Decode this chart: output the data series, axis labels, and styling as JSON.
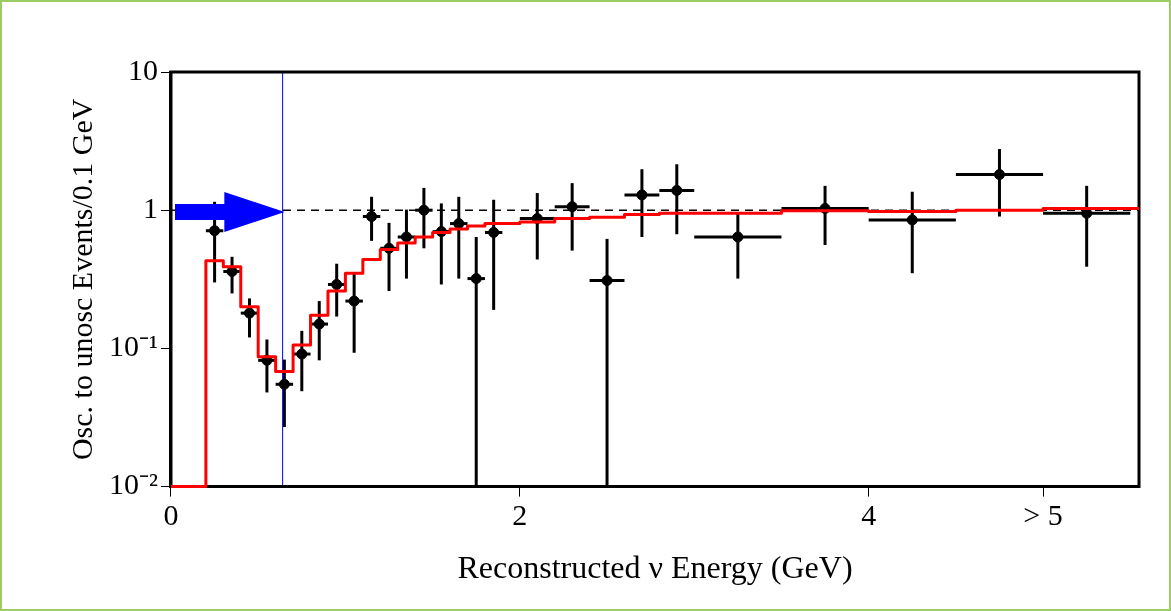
{
  "chart_data": {
    "type": "scatter",
    "xlabel": "Reconstructed ν Energy (GeV)",
    "ylabel": "Osc. to unosc Events/0.1 GeV",
    "log": "y",
    "grid": false,
    "legend": false,
    "xlim": [
      0,
      5.55
    ],
    "xticks": [
      0,
      2,
      4,
      {
        "value": 5,
        "label": "> 5"
      }
    ],
    "ylim": [
      0.01,
      10
    ],
    "yticks": [
      {
        "value": 0.01,
        "label": "10⁻²"
      },
      {
        "value": 0.1,
        "label": "10⁻¹"
      },
      1,
      10
    ],
    "ref_lines": [
      {
        "axis": "y",
        "value": 1,
        "color": "#000000",
        "line_style": "dashed"
      },
      {
        "axis": "x",
        "value": 0.64,
        "color": "#0000ff",
        "line_style": "solid"
      }
    ],
    "series": [
      {
        "type": "step",
        "color": "#ff0000",
        "x": [
          0,
          0.2,
          0.3,
          0.4,
          0.5,
          0.6,
          0.7,
          0.8,
          0.9,
          1.0,
          1.1,
          1.2,
          1.3,
          1.4,
          1.5,
          1.6,
          1.7,
          1.8,
          1.9,
          2.0,
          2.2,
          2.4,
          2.6,
          2.8,
          3.0,
          3.5,
          4.0,
          4.5,
          5.0,
          5.55
        ],
        "values": [
          0.01,
          0.43,
          0.39,
          0.2,
          0.087,
          0.068,
          0.106,
          0.174,
          0.26,
          0.35,
          0.44,
          0.52,
          0.58,
          0.64,
          0.69,
          0.73,
          0.77,
          0.8,
          0.8,
          0.82,
          0.87,
          0.89,
          0.93,
          0.95,
          0.95,
          0.99,
          0.98,
          1.0,
          1.03,
          1.03
        ]
      },
      {
        "color": "#000000",
        "marker": "circle",
        "x": [
          0.25,
          0.35,
          0.45,
          0.55,
          0.65,
          0.75,
          0.85,
          0.95,
          1.05,
          1.15,
          1.25,
          1.35,
          1.45,
          1.55,
          1.65,
          1.75,
          1.85,
          2.1,
          2.3,
          2.5,
          2.7,
          2.9,
          3.25,
          3.75,
          4.25,
          4.75,
          5.25
        ],
        "values": [
          0.71,
          0.36,
          0.18,
          0.082,
          0.055,
          0.091,
          0.15,
          0.29,
          0.22,
          0.9,
          0.53,
          0.64,
          1.0,
          0.7,
          0.8,
          0.32,
          0.69,
          0.87,
          1.06,
          0.31,
          1.29,
          1.39,
          0.64,
          1.03,
          0.85,
          1.81,
          0.95
        ],
        "errors": [
          [
            0.3,
            1.15
          ],
          [
            0.25,
            0.46
          ],
          [
            0.12,
            0.23
          ],
          [
            0.048,
            0.116
          ],
          [
            0.027,
            0.083
          ],
          [
            0.049,
            0.134
          ],
          [
            0.082,
            0.22
          ],
          [
            0.17,
            0.41
          ],
          [
            0.093,
            0.35
          ],
          [
            0.6,
            1.25
          ],
          [
            0.26,
            0.81
          ],
          [
            0.32,
            1.01
          ],
          [
            0.53,
            1.45
          ],
          [
            0.29,
            1.12
          ],
          [
            0.32,
            1.25
          ],
          [
            0.01,
            0.64
          ],
          [
            0.19,
            1.19
          ],
          [
            0.44,
            1.33
          ],
          [
            0.51,
            1.57
          ],
          [
            0.01,
            0.62
          ],
          [
            0.64,
            1.98
          ],
          [
            0.67,
            2.15
          ],
          [
            0.32,
            0.97
          ],
          [
            0.56,
            1.5
          ],
          [
            0.35,
            1.36
          ],
          [
            0.9,
            2.77
          ],
          [
            0.39,
            1.5
          ]
        ],
        "xerrors": [
          0.05,
          0.05,
          0.05,
          0.05,
          0.05,
          0.05,
          0.05,
          0.05,
          0.05,
          0.05,
          0.05,
          0.05,
          0.05,
          0.05,
          0.05,
          0.05,
          0.05,
          0.1,
          0.1,
          0.1,
          0.1,
          0.1,
          0.25,
          0.25,
          0.25,
          0.25,
          0.25
        ]
      }
    ]
  }
}
